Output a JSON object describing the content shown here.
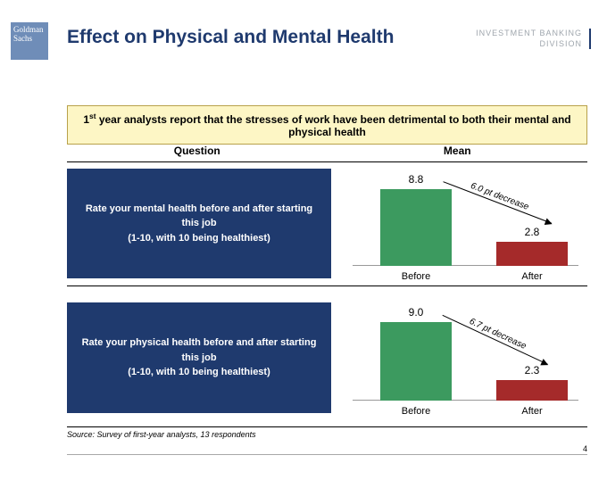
{
  "logo": {
    "line1": "Goldman",
    "line2": "Sachs",
    "bg": "#6f8db8",
    "fg": "#ffffff"
  },
  "title": {
    "text": "Effect on Physical and Mental Health",
    "color": "#1f3a6e"
  },
  "dept": {
    "line1": "INVESTMENT BANKING",
    "line2": "DIVISION",
    "color": "#9fa6ad",
    "border": "#1f3a6e"
  },
  "callout": {
    "html": "1<sup>st</sup> year analysts report that the stresses of work have been detrimental to both their mental and physical health",
    "bg": "#fdf6c5",
    "border": "#b8a14a",
    "textColor": "#000000"
  },
  "columns": {
    "left": "Question",
    "right": "Mean"
  },
  "rows": [
    {
      "question": "Rate your mental health before and after starting this job",
      "subtitle": "(1-10, with 10 being healthiest)",
      "before": 8.8,
      "after": 2.8,
      "arrow": "6.0 pt decrease",
      "arrowAngle": 21
    },
    {
      "question": "Rate your physical health before and after starting this job",
      "subtitle": "(1-10, with 10 being healthiest)",
      "before": 9.0,
      "after": 2.3,
      "arrow": "6.7 pt decrease",
      "arrowAngle": 25
    }
  ],
  "chart": {
    "ymax": 10,
    "pxH": 98,
    "beforeColor": "#3c9a5f",
    "afterColor": "#a52a2a",
    "beforeLabel": "Before",
    "afterLabel": "After",
    "beforeX": 55,
    "afterX": 185,
    "qbox_bg": "#1f3a6e"
  },
  "source": "Source: Survey of first-year analysts, 13 respondents",
  "page": "4"
}
